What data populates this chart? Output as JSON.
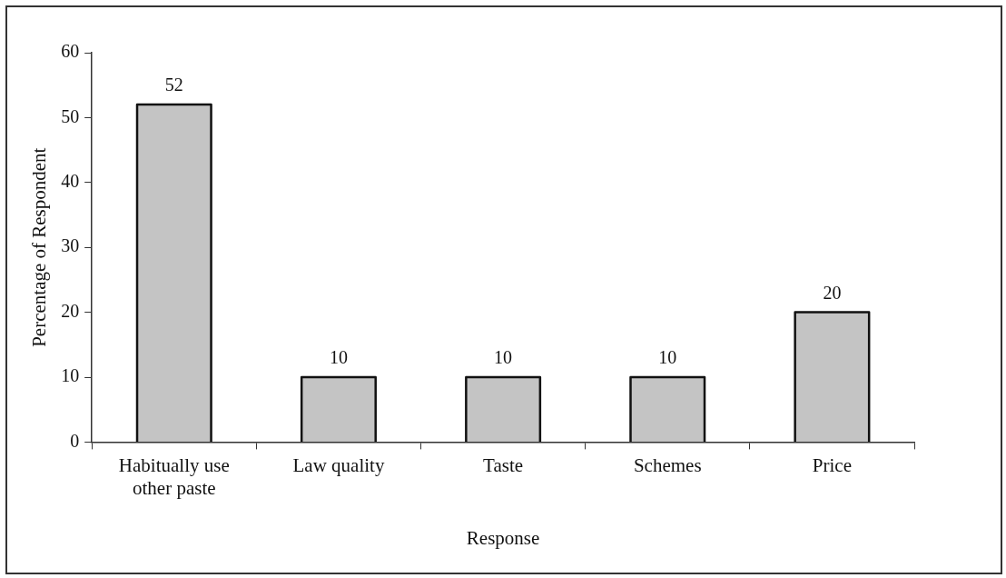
{
  "chart_data": {
    "type": "bar",
    "xlabel": "Response",
    "ylabel": "Percentage of Respondent",
    "categories": [
      "Habitually use other paste",
      "Law quality",
      "Taste",
      "Schemes",
      "Price"
    ],
    "values": [
      52,
      10,
      10,
      10,
      20
    ],
    "color": "#c4c4c4",
    "ylim": [
      0,
      60
    ],
    "yticks": [
      0,
      10,
      20,
      30,
      40,
      50,
      60
    ],
    "grid": false,
    "legend": false,
    "data_labels": true
  }
}
